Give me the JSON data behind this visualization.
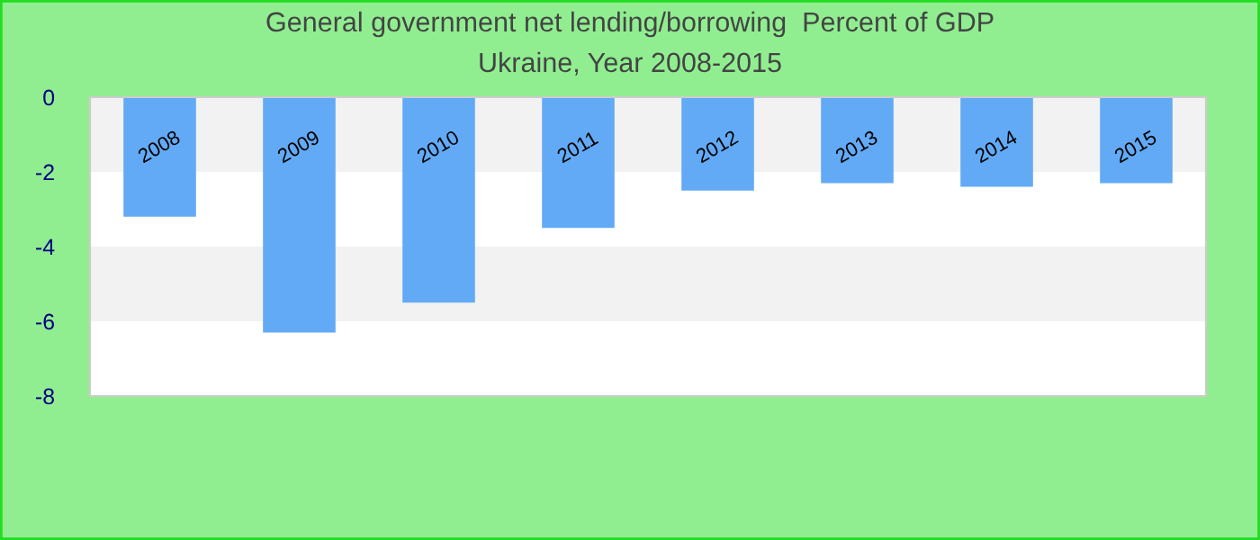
{
  "chart_data": {
    "type": "bar",
    "title": "General government net lending/borrowing  Percent of GDP",
    "subtitle": "Ukraine, Year 2008-2015",
    "categories": [
      "2008",
      "2009",
      "2010",
      "2011",
      "2012",
      "2013",
      "2014",
      "2015"
    ],
    "values": [
      -3.2,
      -6.3,
      -5.5,
      -3.5,
      -2.5,
      -2.3,
      -2.4,
      -2.3
    ],
    "color": "#62aaf5",
    "ylim": [
      -8,
      0
    ],
    "yticks": [
      -8,
      -6,
      -4,
      -2,
      0
    ],
    "bands": [
      {
        "axis": "y",
        "from": -2,
        "to": 0,
        "color": "#f2f2f2"
      },
      {
        "axis": "y",
        "from": -6,
        "to": -4,
        "color": "#f2f2f2"
      }
    ],
    "legend": false
  }
}
